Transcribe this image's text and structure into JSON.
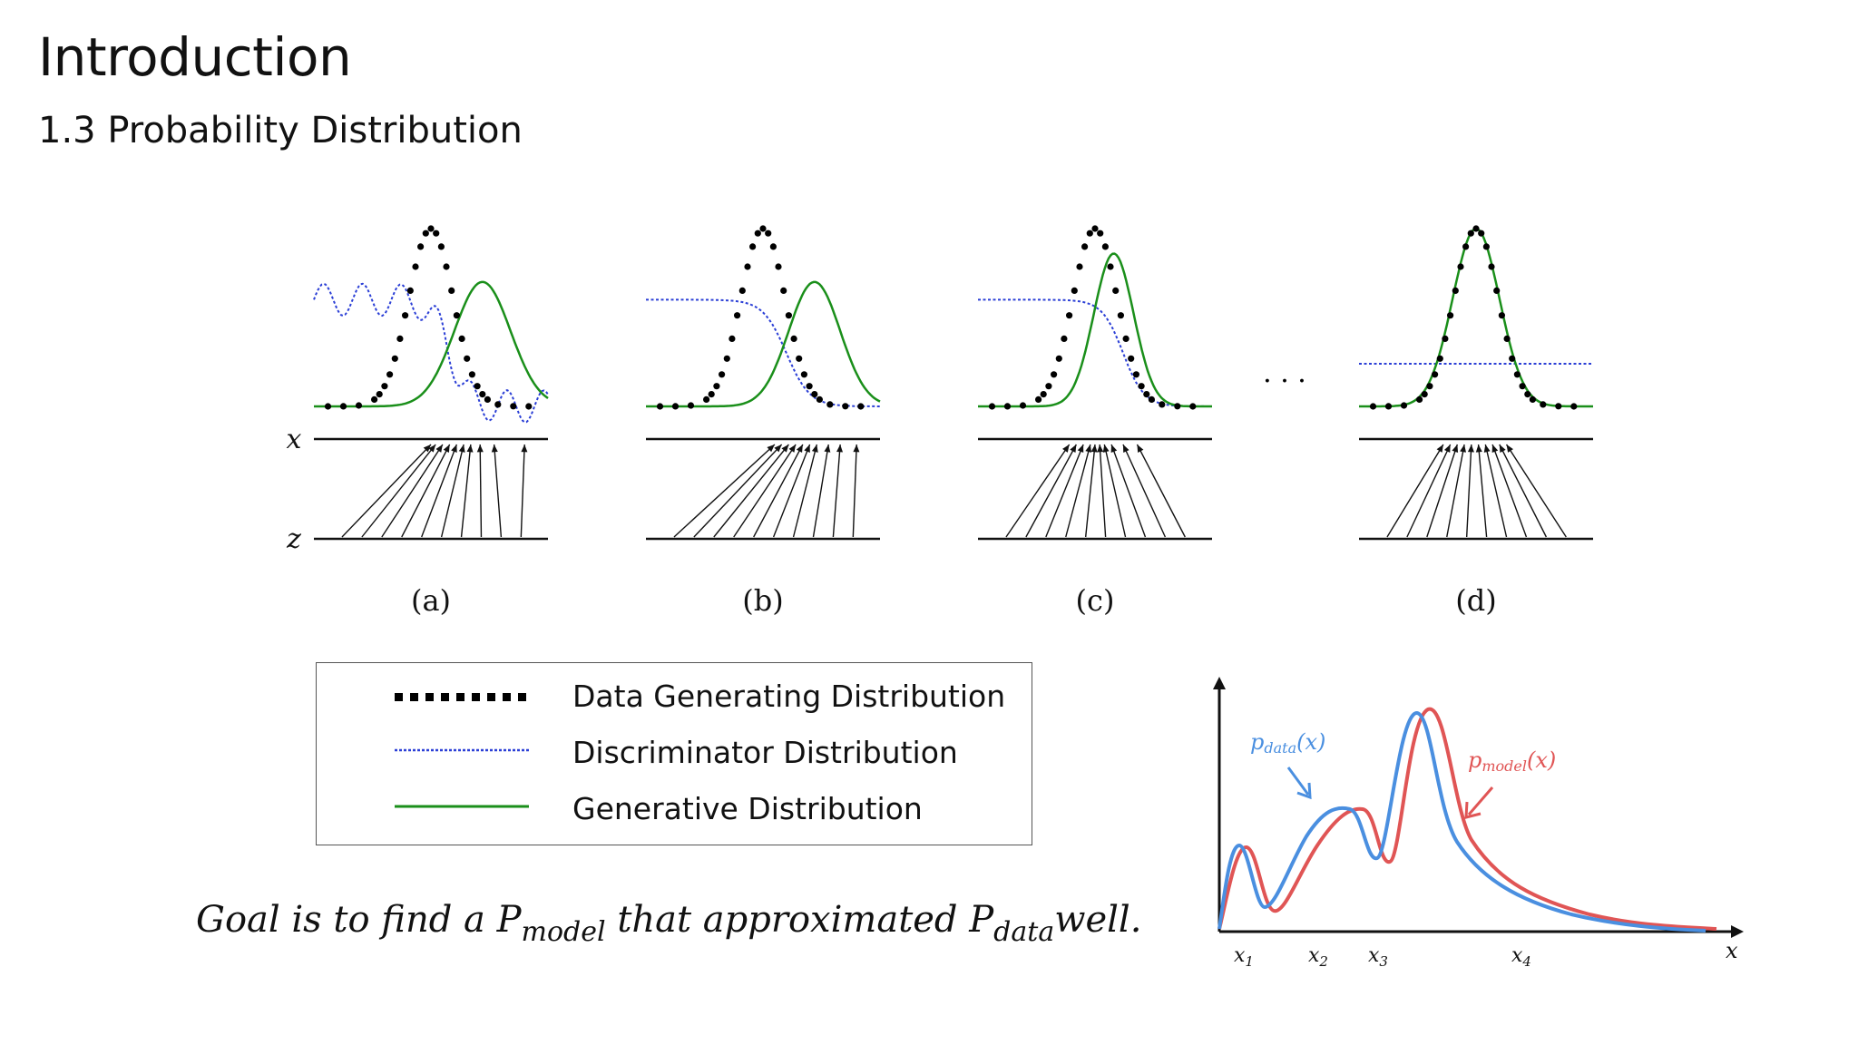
{
  "slide": {
    "title": "Introduction",
    "subtitle": "1.3 Probability Distribution"
  },
  "figure": {
    "axis_labels": {
      "x": "x",
      "z": "z"
    },
    "panels": [
      {
        "label": "(a)"
      },
      {
        "label": "(b)"
      },
      {
        "label": "(c)"
      },
      {
        "label": "(d)"
      }
    ],
    "ellipsis": "· · ·"
  },
  "legend": {
    "items": [
      {
        "label": "Data Generating Distribution",
        "style": "dotted",
        "color": "#000000"
      },
      {
        "label": "Discriminator Distribution",
        "style": "dashed",
        "color": "#2b3fd6"
      },
      {
        "label": "Generative Distribution",
        "style": "solid",
        "color": "#1a8f1a"
      }
    ]
  },
  "goal": {
    "prefix": "Goal is to find a P",
    "model_sub": "model",
    "middle": " that approximated P",
    "data_sub": "data",
    "suffix": "well."
  },
  "pdf_plot": {
    "data_label": "p",
    "data_label_sub": "data",
    "data_label_arg": "(x)",
    "model_label": "p",
    "model_label_sub": "model",
    "model_label_arg": "(x)",
    "x_axis_label": "x",
    "ticks": [
      {
        "base": "x",
        "sub": "1"
      },
      {
        "base": "x",
        "sub": "2"
      },
      {
        "base": "x",
        "sub": "3"
      },
      {
        "base": "x",
        "sub": "4"
      }
    ],
    "colors": {
      "data": "#4a8fe0",
      "model": "#e05555"
    }
  }
}
